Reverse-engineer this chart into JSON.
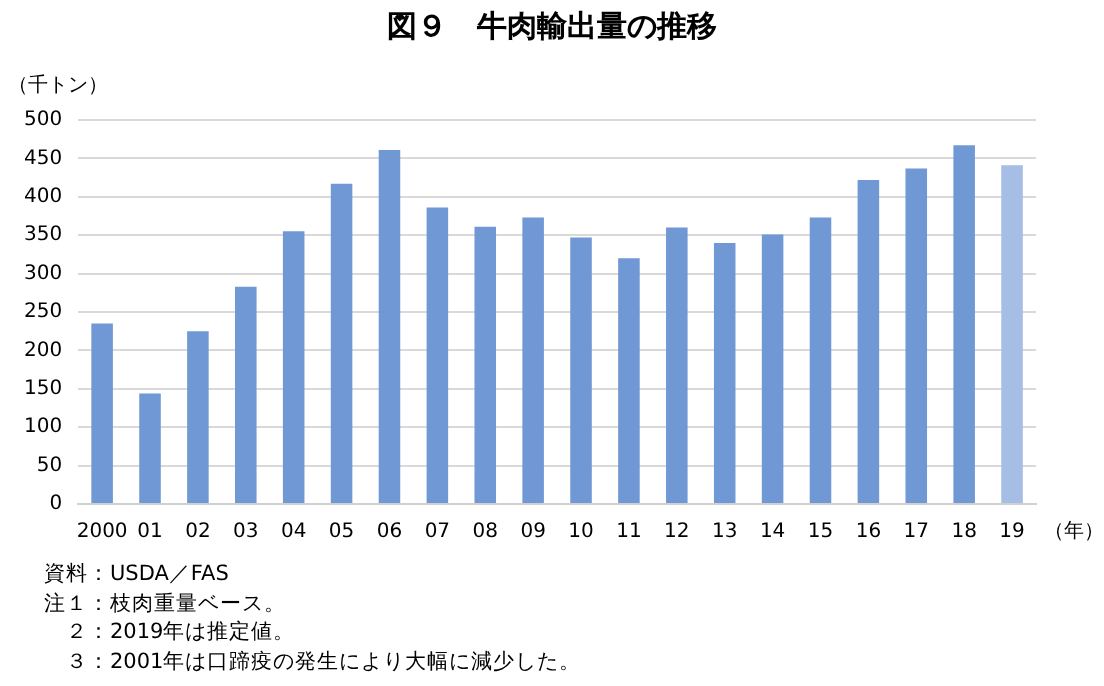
{
  "chart_data": {
    "type": "bar",
    "title": "図９　牛肉輸出量の推移",
    "ylabel": "（千トン）",
    "xlabel": "（年）",
    "categories": [
      "2000",
      "01",
      "02",
      "03",
      "04",
      "05",
      "06",
      "07",
      "08",
      "09",
      "10",
      "11",
      "12",
      "13",
      "14",
      "15",
      "16",
      "17",
      "18",
      "19"
    ],
    "values": [
      235,
      144,
      225,
      283,
      355,
      417,
      461,
      386,
      361,
      373,
      347,
      320,
      360,
      340,
      351,
      373,
      422,
      437,
      467,
      441
    ],
    "colors": [
      "#7098d4",
      "#7098d4",
      "#7098d4",
      "#7098d4",
      "#7098d4",
      "#7098d4",
      "#7098d4",
      "#7098d4",
      "#7098d4",
      "#7098d4",
      "#7098d4",
      "#7098d4",
      "#7098d4",
      "#7098d4",
      "#7098d4",
      "#7098d4",
      "#7098d4",
      "#7098d4",
      "#7098d4",
      "#a6bde6"
    ],
    "ylim": [
      0,
      500
    ],
    "yticks": [
      0,
      50,
      100,
      150,
      200,
      250,
      300,
      350,
      400,
      450,
      500
    ],
    "grid": "y",
    "legend": false,
    "annotations": [
      "資料：USDA／FAS",
      "注１：枝肉重量ベース。",
      "　２：2019年は推定値。",
      "　３：2001年は口蹄疫の発生により大幅に減少した。"
    ]
  }
}
